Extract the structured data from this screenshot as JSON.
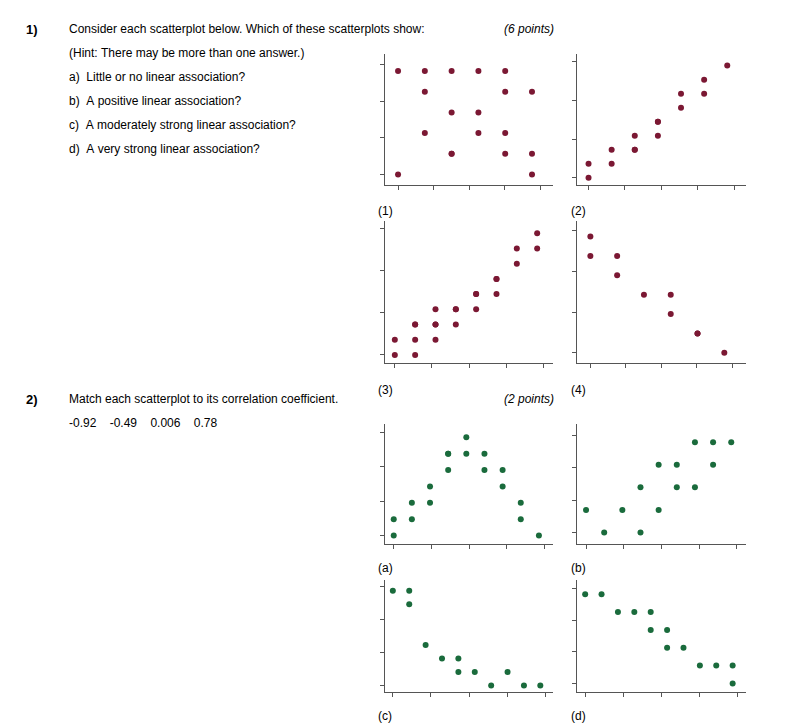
{
  "chart_data": [
    {
      "type": "scatter",
      "xlabel": "(1)",
      "color": "#7B1833",
      "grid": false,
      "tick_labels": false,
      "annotations": [
        "1)",
        "Consider each scatterplot below. Which of these scatterplots show:",
        "(6 points)",
        "(Hint: There may be more than one answer.)",
        "a)  Little or no linear association?",
        "b)  A positive linear association?",
        "c)  A moderately strong linear association?",
        "d)  A very strong linear association?"
      ],
      "x": [
        1,
        2,
        3,
        4,
        5,
        6,
        2,
        3,
        4,
        5,
        3,
        4,
        5,
        6,
        1,
        3,
        5,
        6,
        2
      ],
      "values": [
        7,
        7,
        7,
        7,
        7,
        6,
        6,
        5,
        5,
        6,
        3,
        4,
        4,
        3,
        2,
        3,
        3,
        2,
        4
      ],
      "xlim": [
        0.5,
        6.8
      ],
      "xticks": [
        1,
        2.325,
        3.65,
        4.975,
        6.3
      ],
      "ylim": [
        1.5,
        7.8
      ],
      "yticks": [
        2,
        3.7666666666666666,
        5.533333333333333,
        7.3
      ]
    },
    {
      "type": "scatter",
      "xlabel": "(2)",
      "color": "#7B1833",
      "grid": false,
      "tick_labels": false,
      "x": [
        1,
        1,
        2,
        2,
        3,
        3,
        4,
        4,
        5,
        5,
        6,
        6,
        7,
        3,
        4
      ],
      "values": [
        1,
        2,
        2,
        3,
        3,
        4,
        5,
        5,
        6,
        7,
        7,
        8,
        9,
        3,
        4
      ],
      "xlim": [
        0.5,
        7.8
      ],
      "xticks": [
        1,
        2.575,
        4.15,
        5.725,
        7.3
      ],
      "ylim": [
        0.5,
        9.8
      ],
      "yticks": [
        1,
        3.7666666666666666,
        6.533333333333333,
        9.3
      ]
    },
    {
      "type": "scatter",
      "xlabel": "(3)",
      "color": "#7B1833",
      "grid": false,
      "tick_labels": false,
      "x": [
        1,
        1,
        2,
        2,
        2,
        3,
        3,
        3,
        4,
        4,
        4,
        5,
        5,
        5,
        6,
        6,
        6,
        7,
        7,
        8,
        8,
        2,
        3
      ],
      "values": [
        1,
        2,
        1,
        2,
        3,
        2,
        3,
        3,
        3,
        4,
        4,
        4,
        5,
        5,
        5,
        6,
        6,
        7,
        8,
        8,
        9,
        3,
        4
      ],
      "xlim": [
        0.5,
        8.8
      ],
      "xticks": [
        1,
        2.825,
        4.65,
        6.475,
        8.3
      ],
      "ylim": [
        0.5,
        9.8
      ],
      "yticks": [
        1,
        3.7666666666666666,
        6.533333333333333,
        9.3
      ]
    },
    {
      "type": "scatter",
      "xlabel": "(4)",
      "color": "#7B1833",
      "grid": false,
      "tick_labels": false,
      "x": [
        1,
        1,
        2,
        2,
        3,
        4,
        4,
        5,
        5,
        6
      ],
      "values": [
        8,
        7,
        7,
        6,
        5,
        5,
        4,
        3,
        3,
        2
      ],
      "xlim": [
        0.5,
        6.8
      ],
      "xticks": [
        1,
        2.325,
        3.65,
        4.975,
        6.3
      ],
      "ylim": [
        1.5,
        8.8
      ],
      "yticks": [
        2,
        4.1,
        6.2,
        8.3
      ]
    },
    {
      "type": "scatter",
      "xlabel": "(a)",
      "color": "#1A6B3C",
      "grid": false,
      "tick_labels": false,
      "annotations": [
        "2)",
        "Match each scatterplot to its correlation coefficient.",
        "(2 points)",
        "-0.92    -0.49    0.006    0.78"
      ],
      "x": [
        1,
        1,
        2,
        2,
        3,
        3,
        4,
        4,
        4,
        5,
        5,
        6,
        6,
        7,
        7,
        8,
        8,
        9
      ],
      "values": [
        2,
        3,
        3,
        4,
        4,
        5,
        6,
        7,
        7,
        7,
        8,
        7,
        6,
        6,
        5,
        4,
        3,
        2
      ],
      "xlim": [
        0.5,
        9.8
      ],
      "xticks": [
        1,
        3.075,
        5.15,
        7.225,
        9.3
      ],
      "ylim": [
        1.5,
        8.8
      ],
      "yticks": [
        2,
        4.1,
        6.2,
        8.3
      ]
    },
    {
      "type": "scatter",
      "xlabel": "(b)",
      "color": "#1A6B3C",
      "grid": false,
      "tick_labels": false,
      "x": [
        2,
        3,
        4,
        5,
        5,
        6,
        6,
        7,
        7,
        8,
        8,
        9,
        9,
        10
      ],
      "values": [
        5,
        4,
        5,
        4,
        6,
        5,
        7,
        6,
        7,
        6,
        8,
        7,
        8,
        8
      ],
      "xlim": [
        1.5,
        10.8
      ],
      "xticks": [
        2,
        4.075,
        6.15,
        8.225,
        10.3
      ],
      "ylim": [
        3.5,
        8.8
      ],
      "yticks": [
        4,
        5.433333333333333,
        6.866666666666667,
        8.3
      ]
    },
    {
      "type": "scatter",
      "xlabel": "(c)",
      "color": "#1A6B3C",
      "grid": false,
      "tick_labels": false,
      "x": [
        1,
        2,
        2,
        3,
        4,
        5,
        5,
        6,
        7,
        8,
        9,
        10
      ],
      "values": [
        8,
        8,
        7,
        4,
        3,
        3,
        2,
        2,
        1,
        2,
        1,
        1
      ],
      "xlim": [
        0.5,
        10.8
      ],
      "xticks": [
        1,
        3.325,
        5.65,
        7.975,
        10.3
      ],
      "ylim": [
        0.5,
        8.8
      ],
      "yticks": [
        1,
        3.4333333333333336,
        5.866666666666667,
        8.3
      ]
    },
    {
      "type": "scatter",
      "xlabel": "(d)",
      "color": "#1A6B3C",
      "grid": false,
      "tick_labels": false,
      "x": [
        1,
        2,
        3,
        4,
        5,
        5,
        6,
        6,
        7,
        8,
        9,
        10,
        10
      ],
      "values": [
        7,
        7,
        6,
        6,
        6,
        5,
        5,
        4,
        4,
        3,
        3,
        3,
        2
      ],
      "xlim": [
        0.5,
        10.8
      ],
      "xticks": [
        1,
        3.325,
        5.65,
        7.975,
        10.3
      ],
      "ylim": [
        1.5,
        7.8
      ],
      "yticks": [
        2,
        3.7666666666666666,
        5.533333333333333,
        7.3
      ]
    }
  ]
}
